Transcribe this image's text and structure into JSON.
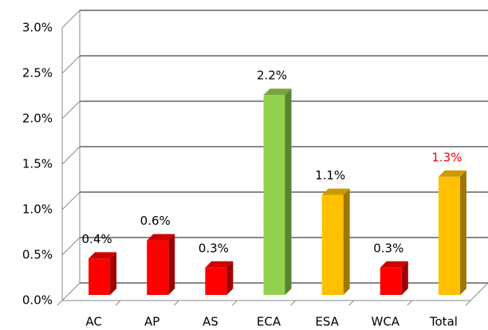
{
  "chart_data": {
    "type": "bar3d",
    "categories": [
      "AC",
      "AP",
      "AS",
      "ECA",
      "ESA",
      "WCA",
      "Total"
    ],
    "values": [
      0.4,
      0.6,
      0.3,
      2.2,
      1.1,
      0.3,
      1.3
    ],
    "value_labels": [
      "0.4%",
      "0.6%",
      "0.3%",
      "2.2%",
      "1.1%",
      "0.3%",
      "1.3%"
    ],
    "colors": [
      "#ff0000",
      "#ff0000",
      "#ff0000",
      "#92d050",
      "#ffc000",
      "#ff0000",
      "#ffc000"
    ],
    "value_label_colors": [
      "#000000",
      "#000000",
      "#000000",
      "#000000",
      "#000000",
      "#000000",
      "#ff0000"
    ],
    "ylim": [
      0,
      3
    ],
    "yticks": [
      {
        "value": 0,
        "label": "0.0%"
      },
      {
        "value": 0.5,
        "label": "0.5%"
      },
      {
        "value": 1,
        "label": "1.0%"
      },
      {
        "value": 1.5,
        "label": "1.5%"
      },
      {
        "value": 2,
        "label": "2.0%"
      },
      {
        "value": 2.5,
        "label": "2.5%"
      },
      {
        "value": 3,
        "label": "3.0%"
      }
    ],
    "grid": true
  }
}
